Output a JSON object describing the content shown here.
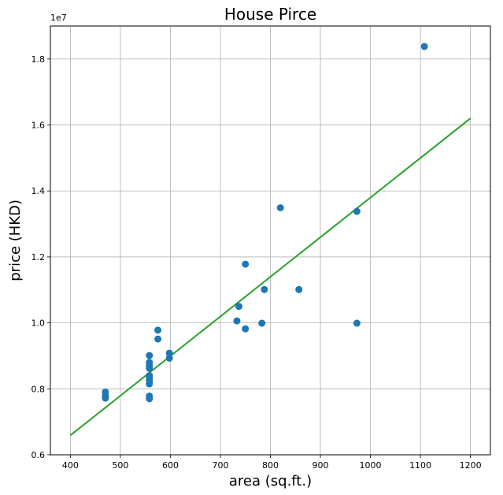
{
  "chart_data": {
    "type": "scatter",
    "title": "House Pirce",
    "xlabel": "area (sq.ft.)",
    "ylabel": "price (HKD)",
    "y_offset_label": "1e7",
    "xlim": [
      360,
      1240
    ],
    "ylim": [
      0.6,
      1.9
    ],
    "x_ticks": [
      400,
      500,
      600,
      700,
      800,
      900,
      1000,
      1100,
      1200
    ],
    "y_ticks": [
      0.6,
      0.8,
      1.0,
      1.2,
      1.4,
      1.6,
      1.8
    ],
    "x_tick_labels": [
      "400",
      "500",
      "600",
      "700",
      "800",
      "900",
      "1000",
      "1100",
      "1200"
    ],
    "y_tick_labels": [
      "0.6",
      "0.8",
      "1.0",
      "1.2",
      "1.4",
      "1.6",
      "1.8"
    ],
    "grid": true,
    "series": [
      {
        "kind": "scatter",
        "color": "#1f77b4",
        "points": [
          [
            470,
            0.79
          ],
          [
            470,
            0.778
          ],
          [
            470,
            0.772
          ],
          [
            558,
            0.901
          ],
          [
            558,
            0.88
          ],
          [
            558,
            0.87
          ],
          [
            558,
            0.862
          ],
          [
            558,
            0.84
          ],
          [
            558,
            0.832
          ],
          [
            558,
            0.825
          ],
          [
            558,
            0.815
          ],
          [
            558,
            0.778
          ],
          [
            558,
            0.77
          ],
          [
            575,
            0.978
          ],
          [
            575,
            0.951
          ],
          [
            598,
            0.908
          ],
          [
            598,
            0.893
          ],
          [
            733,
            1.006
          ],
          [
            737,
            1.05
          ],
          [
            750,
            1.178
          ],
          [
            750,
            0.982
          ],
          [
            783,
            0.999
          ],
          [
            788,
            1.101
          ],
          [
            820,
            1.349
          ],
          [
            857,
            1.101
          ],
          [
            973,
            1.338
          ],
          [
            973,
            0.999
          ],
          [
            1108,
            1.838
          ]
        ]
      },
      {
        "kind": "line",
        "color": "#2ca02c",
        "x": [
          400,
          1200
        ],
        "y": [
          0.659,
          1.62
        ]
      }
    ]
  }
}
